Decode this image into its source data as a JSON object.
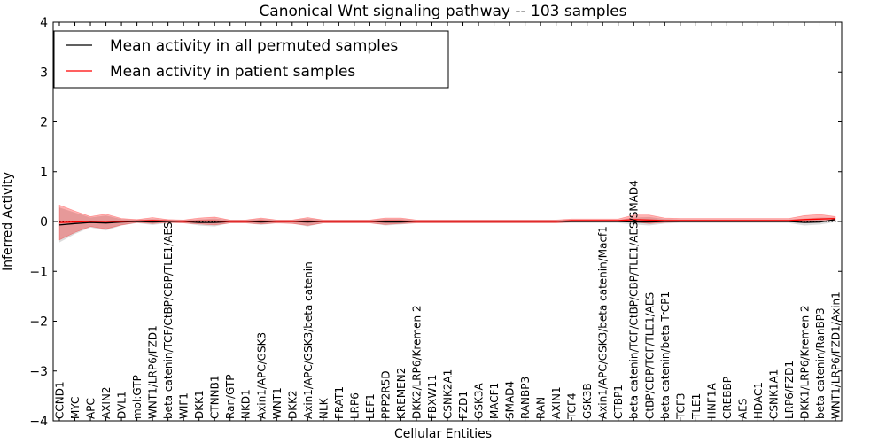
{
  "chart_data": {
    "type": "line",
    "title": "Canonical Wnt signaling pathway -- 103 samples",
    "xlabel": "Cellular Entities",
    "ylabel": "Inferred Activity",
    "ylim": [
      -4,
      4
    ],
    "yticks": [
      -4,
      -3,
      -2,
      -1,
      0,
      1,
      2,
      3,
      4
    ],
    "ytick_labels": [
      "−4",
      "−3",
      "−2",
      "−1",
      "0",
      "1",
      "2",
      "3",
      "4"
    ],
    "grid": false,
    "legend_position": "upper-left",
    "legend": [
      {
        "label": "Mean activity in all permuted samples",
        "color": "#000000"
      },
      {
        "label": "Mean activity in patient samples",
        "color": "#ff0000"
      }
    ],
    "categories": [
      "CCND1",
      "MYC",
      "APC",
      "AXIN2",
      "DVL1",
      "mol:GTP",
      "WNT1/LRP6/FZD1",
      "beta catenin/TCF/CtBP/CBP/TLE1/AES",
      "WIF1",
      "DKK1",
      "CTNNB1",
      "Ran/GTP",
      "NKD1",
      "Axin1/APC/GSK3",
      "WNT1",
      "DKK2",
      "Axin1/APC/GSK3/beta catenin",
      "NLK",
      "FRAT1",
      "LRP6",
      "LEF1",
      "PPP2R5D",
      "KREMEN2",
      "DKK2/LRP6/Kremen 2",
      "FBXW11",
      "CSNK2A1",
      "FZD1",
      "GSK3A",
      "MACF1",
      "SMAD4",
      "RANBP3",
      "RAN",
      "AXIN1",
      "TCF4",
      "GSK3B",
      "Axin1/APC/GSK3/beta catenin/Macf1",
      "CTBP1",
      "beta catenin/TCF/CtBP/CBP/TLE1/AES/SMAD4",
      "CtBP/CBP/TCF/TLE1/AES",
      "beta catenin/beta TrCP1",
      "TCF3",
      "TLE1",
      "HNF1A",
      "CREBBP",
      "AES",
      "HDAC1",
      "CSNK1A1",
      "LRP6/FZD1",
      "DKK1/LRP6/Kremen 2",
      "beta catenin/RanBP3",
      "WNT1/LRP6/FZD1/Axin1"
    ],
    "series": [
      {
        "name": "Mean activity in all permuted samples",
        "color": "#000000",
        "values": [
          -0.07,
          -0.04,
          -0.02,
          -0.03,
          -0.01,
          0.0,
          -0.01,
          0.0,
          0.0,
          -0.02,
          -0.02,
          0.0,
          0.0,
          -0.01,
          0.0,
          0.0,
          -0.01,
          0.0,
          0.0,
          0.0,
          0.0,
          -0.01,
          -0.01,
          0.0,
          0.0,
          0.0,
          0.0,
          0.0,
          0.0,
          0.0,
          0.0,
          0.0,
          0.0,
          0.0,
          0.0,
          0.0,
          0.0,
          -0.01,
          -0.01,
          0.0,
          0.0,
          0.0,
          0.0,
          0.0,
          0.0,
          0.0,
          0.0,
          0.0,
          -0.02,
          -0.01,
          0.04
        ],
        "band_lower": [
          -0.42,
          -0.25,
          -0.12,
          -0.18,
          -0.08,
          -0.03,
          -0.07,
          -0.03,
          -0.03,
          -0.08,
          -0.1,
          -0.03,
          -0.03,
          -0.07,
          -0.03,
          -0.04,
          -0.1,
          -0.03,
          -0.03,
          -0.03,
          -0.03,
          -0.08,
          -0.06,
          -0.03,
          -0.03,
          -0.03,
          -0.03,
          -0.03,
          -0.03,
          -0.03,
          -0.03,
          -0.03,
          -0.03,
          -0.03,
          -0.03,
          -0.03,
          -0.03,
          -0.06,
          -0.08,
          -0.04,
          -0.03,
          -0.03,
          -0.03,
          -0.03,
          -0.03,
          -0.03,
          -0.03,
          -0.03,
          -0.08,
          -0.06,
          -0.01
        ],
        "band_upper": [
          0.28,
          0.18,
          0.08,
          0.12,
          0.05,
          0.03,
          0.05,
          0.03,
          0.03,
          0.04,
          0.06,
          0.03,
          0.03,
          0.05,
          0.03,
          0.03,
          0.06,
          0.03,
          0.03,
          0.03,
          0.03,
          0.05,
          0.05,
          0.03,
          0.03,
          0.03,
          0.03,
          0.03,
          0.03,
          0.03,
          0.03,
          0.03,
          0.03,
          0.03,
          0.03,
          0.03,
          0.03,
          0.08,
          0.09,
          0.05,
          0.04,
          0.04,
          0.04,
          0.04,
          0.04,
          0.04,
          0.04,
          0.04,
          0.06,
          0.08,
          0.08
        ]
      },
      {
        "name": "Mean activity in patient samples",
        "color": "#ff0000",
        "values": [
          -0.02,
          -0.01,
          0.0,
          0.0,
          0.0,
          0.01,
          0.02,
          0.01,
          0.0,
          0.01,
          0.01,
          0.0,
          0.0,
          0.01,
          0.0,
          0.0,
          0.01,
          0.0,
          0.0,
          0.0,
          0.0,
          0.01,
          0.01,
          0.0,
          0.0,
          0.0,
          0.0,
          0.0,
          0.0,
          0.0,
          0.0,
          0.0,
          0.0,
          0.02,
          0.02,
          0.02,
          0.02,
          0.04,
          0.03,
          0.02,
          0.02,
          0.02,
          0.02,
          0.02,
          0.02,
          0.02,
          0.02,
          0.02,
          0.04,
          0.05,
          0.06
        ]
      }
    ]
  }
}
